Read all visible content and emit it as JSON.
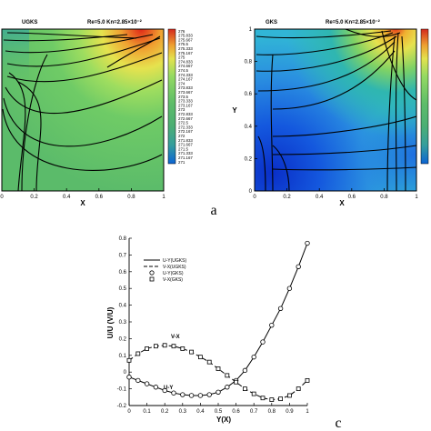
{
  "panel_labels": {
    "top": "a",
    "bottom": "c"
  },
  "chart_data": [
    {
      "type": "heatmap",
      "title": "UGKS",
      "parameters": "Re=5.0   Kn=2.85×10⁻²",
      "xlabel": "X",
      "ylabel": "",
      "xlim": [
        0,
        1
      ],
      "ylim": [
        0,
        1
      ],
      "x_ticks": [
        "0",
        "0.2",
        "0.4",
        "0.6",
        "0.8",
        "1"
      ],
      "colorbar": {
        "labels": [
          "276",
          "275.833",
          "275.667",
          "275.5",
          "275.333",
          "275.167",
          "275",
          "274.833",
          "274.667",
          "274.5",
          "274.333",
          "274.167",
          "274",
          "273.833",
          "273.667",
          "273.5",
          "273.333",
          "273.167",
          "273",
          "272.833",
          "272.667",
          "272.5",
          "272.333",
          "272.167",
          "272",
          "271.833",
          "271.667",
          "271.5",
          "271.333",
          "271.167",
          "271"
        ],
        "colors": [
          "#d42a1e",
          "#e05223",
          "#e87a29",
          "#eea031",
          "#f0be3a",
          "#efd445",
          "#e3e24e",
          "#c9e657",
          "#aee25e",
          "#94da62",
          "#7fd265",
          "#70cb66",
          "#67c567",
          "#62c168",
          "#5ebd69",
          "#5bbb6a",
          "#58b86b",
          "#55b66c",
          "#52b36e",
          "#4fb170",
          "#4caf74",
          "#48ab7a",
          "#43a884",
          "#3da390",
          "#359e9c",
          "#2c98a8",
          "#2390b4",
          "#1b86bf",
          "#157bc7",
          "#1070cf",
          "#0c64d4"
        ]
      }
    },
    {
      "type": "heatmap",
      "title": "GKS",
      "parameters": "Re=5.0   Kn=2.85×10⁻²",
      "xlabel": "X",
      "ylabel": "Y",
      "xlim": [
        0,
        1
      ],
      "ylim": [
        0,
        1
      ],
      "x_ticks": [
        "0",
        "0.2",
        "0.4",
        "0.6",
        "0.8",
        "1"
      ],
      "y_ticks": [
        "0",
        "0.2",
        "0.4",
        "0.6",
        "0.8",
        "1"
      ]
    },
    {
      "type": "line",
      "xlabel": "Y(X)",
      "ylabel": "U/U (V/U)",
      "xlim": [
        0,
        1
      ],
      "ylim": [
        -0.2,
        0.8
      ],
      "x_ticks": [
        "0",
        "0.1",
        "0.2",
        "0.3",
        "0.4",
        "0.5",
        "0.6",
        "0.7",
        "0.8",
        "0.9",
        "1"
      ],
      "y_ticks": [
        "-0.2",
        "-0.1",
        "0",
        "0.1",
        "0.2",
        "0.3",
        "0.4",
        "0.5",
        "0.6",
        "0.7",
        "0.8"
      ],
      "annotations": {
        "vx": "V-X",
        "uy": "U-Y"
      },
      "legend": [
        {
          "label": "U-Y(UGKS)",
          "style": "solid"
        },
        {
          "label": "V-X(UGKS)",
          "style": "dashed"
        },
        {
          "label": "U-Y(GKS)",
          "style": "circle"
        },
        {
          "label": "V-X(GKS)",
          "style": "square"
        }
      ],
      "series": [
        {
          "name": "U-Y(UGKS)",
          "x": [
            0,
            0.05,
            0.1,
            0.15,
            0.2,
            0.25,
            0.3,
            0.35,
            0.4,
            0.45,
            0.5,
            0.55,
            0.6,
            0.65,
            0.7,
            0.75,
            0.8,
            0.85,
            0.9,
            0.95,
            1.0
          ],
          "y": [
            -0.03,
            -0.05,
            -0.07,
            -0.09,
            -0.11,
            -0.125,
            -0.135,
            -0.14,
            -0.14,
            -0.135,
            -0.12,
            -0.09,
            -0.05,
            0.01,
            0.09,
            0.18,
            0.28,
            0.38,
            0.5,
            0.63,
            0.77
          ]
        },
        {
          "name": "V-X(UGKS)",
          "x": [
            0,
            0.05,
            0.1,
            0.15,
            0.2,
            0.25,
            0.3,
            0.35,
            0.4,
            0.45,
            0.5,
            0.55,
            0.6,
            0.65,
            0.7,
            0.75,
            0.8,
            0.85,
            0.9,
            0.95,
            1.0
          ],
          "y": [
            0.07,
            0.11,
            0.14,
            0.155,
            0.16,
            0.155,
            0.14,
            0.12,
            0.09,
            0.06,
            0.02,
            -0.02,
            -0.06,
            -0.1,
            -0.13,
            -0.155,
            -0.165,
            -0.16,
            -0.14,
            -0.1,
            -0.05
          ]
        },
        {
          "name": "U-Y(GKS)",
          "x": [
            0,
            0.05,
            0.1,
            0.15,
            0.2,
            0.25,
            0.3,
            0.35,
            0.4,
            0.45,
            0.5,
            0.55,
            0.6,
            0.65,
            0.7,
            0.75,
            0.8,
            0.85,
            0.9,
            0.95,
            1.0
          ],
          "y": [
            -0.03,
            -0.05,
            -0.07,
            -0.09,
            -0.11,
            -0.125,
            -0.135,
            -0.14,
            -0.14,
            -0.135,
            -0.12,
            -0.09,
            -0.05,
            0.01,
            0.09,
            0.18,
            0.28,
            0.38,
            0.5,
            0.63,
            0.77
          ]
        },
        {
          "name": "V-X(GKS)",
          "x": [
            0,
            0.05,
            0.1,
            0.15,
            0.2,
            0.25,
            0.3,
            0.35,
            0.4,
            0.45,
            0.5,
            0.55,
            0.6,
            0.65,
            0.7,
            0.75,
            0.8,
            0.85,
            0.9,
            0.95,
            1.0
          ],
          "y": [
            0.07,
            0.11,
            0.14,
            0.155,
            0.16,
            0.155,
            0.14,
            0.12,
            0.09,
            0.06,
            0.02,
            -0.02,
            -0.06,
            -0.1,
            -0.13,
            -0.155,
            -0.165,
            -0.16,
            -0.14,
            -0.1,
            -0.05
          ]
        }
      ]
    }
  ]
}
